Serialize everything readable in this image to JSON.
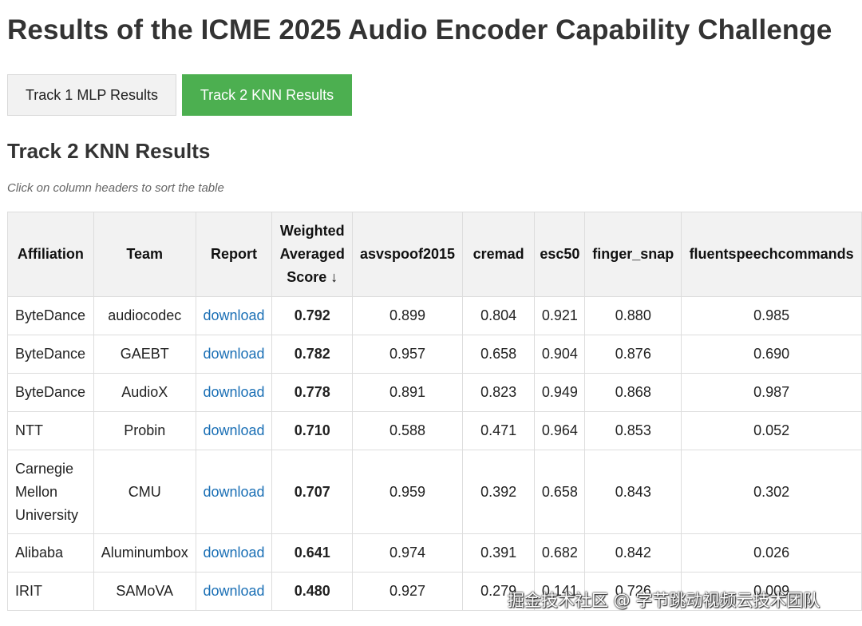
{
  "title": "Results of the ICME 2025 Audio Encoder Capability Challenge",
  "tabs": [
    {
      "label": "Track 1 MLP Results",
      "active": false
    },
    {
      "label": "Track 2 KNN Results",
      "active": true
    }
  ],
  "section_title": "Track 2 KNN Results",
  "hint": "Click on column headers to sort the table",
  "colors": {
    "active_tab": "#4caf50",
    "link": "#1a6fb5",
    "header_bg": "#f2f2f2"
  },
  "table": {
    "headers": {
      "affiliation": "Affiliation",
      "team": "Team",
      "report": "Report",
      "score_line1": "Weighted",
      "score_line2": "Averaged",
      "score_line3": "Score ↓",
      "asvspoof2015": "asvspoof2015",
      "cremad": "cremad",
      "esc50": "esc50",
      "finger_snap": "finger_snap",
      "fluentspeechcommands": "fluentspeechcommands"
    },
    "rows": [
      {
        "affiliation": "ByteDance",
        "team": "audiocodec",
        "report": "download",
        "score": "0.792",
        "asvspoof2015": "0.899",
        "cremad": "0.804",
        "esc50": "0.921",
        "finger_snap": "0.880",
        "fluentspeechcommands": "0.985"
      },
      {
        "affiliation": "ByteDance",
        "team": "GAEBT",
        "report": "download",
        "score": "0.782",
        "asvspoof2015": "0.957",
        "cremad": "0.658",
        "esc50": "0.904",
        "finger_snap": "0.876",
        "fluentspeechcommands": "0.690"
      },
      {
        "affiliation": "ByteDance",
        "team": "AudioX",
        "report": "download",
        "score": "0.778",
        "asvspoof2015": "0.891",
        "cremad": "0.823",
        "esc50": "0.949",
        "finger_snap": "0.868",
        "fluentspeechcommands": "0.987"
      },
      {
        "affiliation": "NTT",
        "team": "Probin",
        "report": "download",
        "score": "0.710",
        "asvspoof2015": "0.588",
        "cremad": "0.471",
        "esc50": "0.964",
        "finger_snap": "0.853",
        "fluentspeechcommands": "0.052"
      },
      {
        "affiliation": "Carnegie Mellon University",
        "team": "CMU",
        "report": "download",
        "score": "0.707",
        "asvspoof2015": "0.959",
        "cremad": "0.392",
        "esc50": "0.658",
        "finger_snap": "0.843",
        "fluentspeechcommands": "0.302"
      },
      {
        "affiliation": "Alibaba",
        "team": "Aluminumbox",
        "report": "download",
        "score": "0.641",
        "asvspoof2015": "0.974",
        "cremad": "0.391",
        "esc50": "0.682",
        "finger_snap": "0.842",
        "fluentspeechcommands": "0.026"
      },
      {
        "affiliation": "IRIT",
        "team": "SAMoVA",
        "report": "download",
        "score": "0.480",
        "asvspoof2015": "0.927",
        "cremad": "0.279",
        "esc50": "0.141",
        "finger_snap": "0.726",
        "fluentspeechcommands": "0.009"
      }
    ]
  },
  "watermark": "掘金技术社区 @ 字节跳动视频云技术团队"
}
